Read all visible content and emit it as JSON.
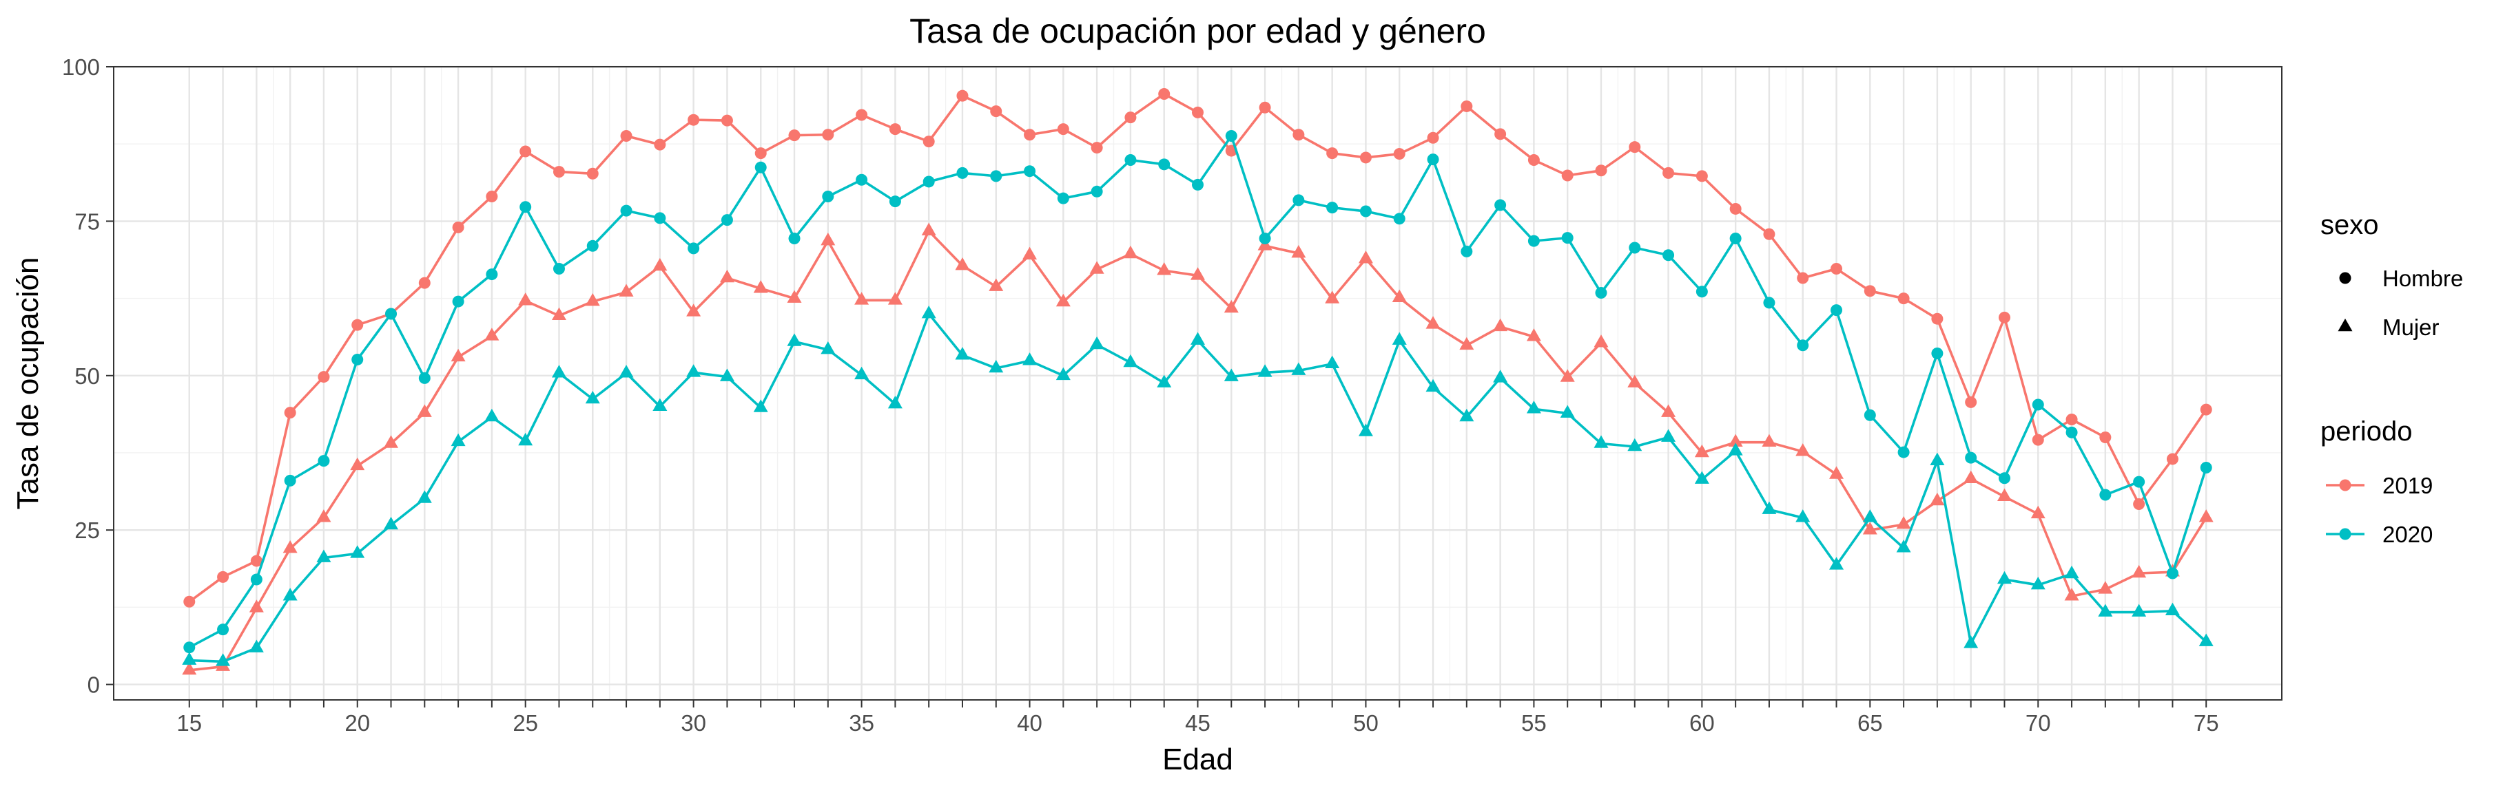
{
  "chart_data": {
    "type": "line",
    "title": "Tasa de ocupación por edad y género",
    "xlabel": "Edad",
    "ylabel": "Tasa de ocupación",
    "xlim": [
      12.75,
      77.25
    ],
    "ylim": [
      -2.5,
      100
    ],
    "x_ticks": [
      15,
      20,
      25,
      30,
      35,
      40,
      45,
      50,
      55,
      60,
      65,
      70,
      75
    ],
    "y_ticks": [
      0,
      25,
      50,
      75,
      100
    ],
    "grid": true,
    "legend_position": "right",
    "colors": {
      "2019": "#f8766d",
      "2020": "#00bfc4"
    },
    "legends": [
      {
        "title": "sexo",
        "entries": [
          {
            "label": "Hombre",
            "shape": "circle"
          },
          {
            "label": "Mujer",
            "shape": "triangle"
          }
        ]
      },
      {
        "title": "periodo",
        "entries": [
          {
            "label": "2019",
            "color": "#f8766d"
          },
          {
            "label": "2020",
            "color": "#00bfc4"
          }
        ]
      }
    ],
    "x": [
      15,
      16,
      17,
      18,
      19,
      20,
      21,
      22,
      23,
      24,
      25,
      26,
      27,
      28,
      29,
      30,
      31,
      32,
      33,
      34,
      35,
      36,
      37,
      38,
      39,
      40,
      41,
      42,
      43,
      44,
      45,
      46,
      47,
      48,
      49,
      50,
      51,
      52,
      53,
      54,
      55,
      56,
      57,
      58,
      59,
      60,
      61,
      62,
      63,
      64,
      65,
      66,
      67,
      68,
      69,
      70,
      71,
      72,
      73,
      74,
      75
    ],
    "series": [
      {
        "sexo": "Hombre",
        "periodo": "2019",
        "shape": "circle",
        "color": "#f8766d",
        "values": [
          13.4,
          17.4,
          20.0,
          44.0,
          49.8,
          58.2,
          60.0,
          65.0,
          74.0,
          79.0,
          86.3,
          83.0,
          82.7,
          88.8,
          87.4,
          91.4,
          91.3,
          86.0,
          88.9,
          89.0,
          92.2,
          89.9,
          87.9,
          95.3,
          92.8,
          89.0,
          89.9,
          86.9,
          91.8,
          95.6,
          92.6,
          86.4,
          93.4,
          89.0,
          86.0,
          85.3,
          85.9,
          88.5,
          93.6,
          89.1,
          84.9,
          82.4,
          83.2,
          87.0,
          82.8,
          82.3,
          77.0,
          72.9,
          65.8,
          67.3,
          63.7,
          62.5,
          59.2,
          45.7,
          59.4,
          39.6,
          42.9,
          40.0,
          29.2,
          36.5,
          44.5
        ]
      },
      {
        "sexo": "Mujer",
        "periodo": "2019",
        "shape": "triangle",
        "color": "#f8766d",
        "values": [
          2.3,
          2.9,
          12.4,
          22.0,
          27.0,
          35.4,
          39.0,
          44.0,
          53.0,
          56.4,
          62.1,
          59.7,
          62.0,
          63.5,
          67.7,
          60.3,
          65.8,
          64.1,
          62.5,
          71.8,
          62.2,
          62.2,
          73.4,
          67.8,
          64.4,
          69.5,
          61.9,
          67.2,
          69.7,
          67.0,
          66.2,
          60.9,
          71.0,
          69.8,
          62.4,
          68.9,
          62.6,
          58.3,
          54.9,
          57.9,
          56.3,
          49.7,
          55.3,
          48.8,
          44.0,
          37.5,
          39.2,
          39.2,
          37.7,
          34.0,
          25.0,
          25.9,
          29.7,
          33.3,
          30.4,
          27.6,
          14.3,
          15.4,
          18.0,
          18.2,
          27.0
        ]
      },
      {
        "sexo": "Hombre",
        "periodo": "2020",
        "shape": "circle",
        "color": "#00bfc4",
        "values": [
          6.0,
          8.9,
          17.0,
          33.0,
          36.2,
          52.6,
          60.0,
          49.6,
          62.0,
          66.4,
          77.3,
          67.3,
          71.0,
          76.7,
          75.5,
          70.6,
          75.2,
          83.7,
          72.2,
          79.0,
          81.7,
          78.2,
          81.4,
          82.8,
          82.3,
          83.1,
          78.7,
          79.8,
          84.9,
          84.2,
          80.9,
          88.8,
          72.2,
          78.4,
          77.2,
          76.6,
          75.4,
          85.0,
          70.1,
          77.6,
          71.8,
          72.3,
          63.4,
          70.7,
          69.5,
          63.6,
          72.2,
          61.8,
          54.9,
          60.6,
          43.6,
          37.6,
          53.6,
          36.7,
          33.4,
          45.3,
          40.8,
          30.7,
          32.8,
          18.0,
          35.1
        ]
      },
      {
        "sexo": "Mujer",
        "periodo": "2020",
        "shape": "triangle",
        "color": "#00bfc4",
        "values": [
          3.9,
          3.7,
          5.9,
          14.3,
          20.5,
          21.2,
          25.8,
          30.1,
          39.3,
          43.3,
          39.4,
          50.4,
          46.2,
          50.4,
          45.0,
          50.5,
          49.8,
          44.8,
          55.5,
          54.2,
          50.1,
          45.4,
          60.0,
          53.3,
          51.2,
          52.4,
          50.0,
          55.0,
          52.1,
          48.8,
          55.7,
          49.8,
          50.5,
          50.8,
          51.9,
          40.9,
          55.7,
          48.1,
          43.3,
          49.6,
          44.6,
          43.9,
          39.0,
          38.5,
          40.0,
          33.2,
          37.8,
          28.3,
          27.0,
          19.3,
          27.0,
          22.1,
          36.2,
          6.6,
          17.0,
          16.1,
          17.9,
          11.7,
          11.7,
          11.9,
          6.9
        ]
      }
    ]
  }
}
